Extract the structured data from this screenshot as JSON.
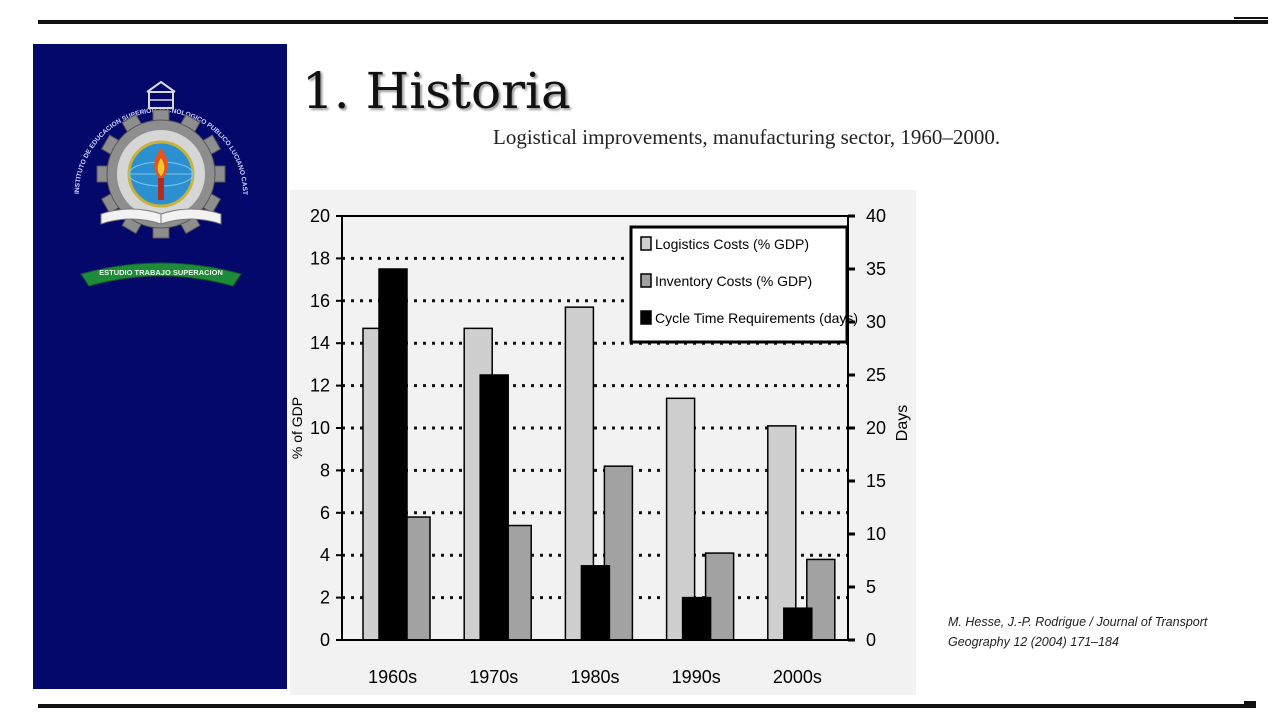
{
  "slide": {
    "number": "1.",
    "title": "Historia",
    "subtitle": "Logistical improvements, manufacturing sector, 1960–2000.",
    "citation": "M. Hesse, J.-P. Rodrigue / Journal of Transport Geography 12 (2004) 171–184"
  },
  "logo": {
    "banner_text": "ESTUDIO TRABAJO SUPERACION",
    "ring_text": "INSTITUTO DE EDUCACION SUPERIOR TECNOLOGICO PUBLICO LUCIANO CASTILLO COLONNA"
  },
  "colors": {
    "sidebar": "#05086b",
    "logistics": "#cfcfcf",
    "inventory": "#a2a2a2",
    "cycle": "#000000"
  },
  "chart_data": {
    "type": "bar",
    "categories": [
      "1960s",
      "1970s",
      "1980s",
      "1990s",
      "2000s"
    ],
    "series": [
      {
        "name": "Logistics Costs (% GDP)",
        "axis": "left",
        "values": [
          14.7,
          14.7,
          15.7,
          11.4,
          10.1
        ]
      },
      {
        "name": "Inventory Costs (% GDP)",
        "axis": "left",
        "values": [
          5.8,
          5.4,
          8.2,
          4.1,
          3.8
        ]
      },
      {
        "name": "Cycle Time Requirements (days)",
        "axis": "right",
        "values": [
          35,
          25,
          7,
          4,
          3
        ]
      }
    ],
    "ylabel": "% of GDP",
    "y2label": "Days",
    "ylim": [
      0,
      20
    ],
    "y2lim": [
      0,
      40
    ],
    "yticks": [
      "0",
      "2",
      "4",
      "6",
      "8",
      "10",
      "12",
      "14",
      "16",
      "18",
      "20"
    ],
    "y2ticks": [
      "0",
      "5",
      "10",
      "15",
      "20",
      "25",
      "30",
      "35",
      "40"
    ],
    "grid": "dotted horizontal",
    "legend_position": "top-right"
  }
}
